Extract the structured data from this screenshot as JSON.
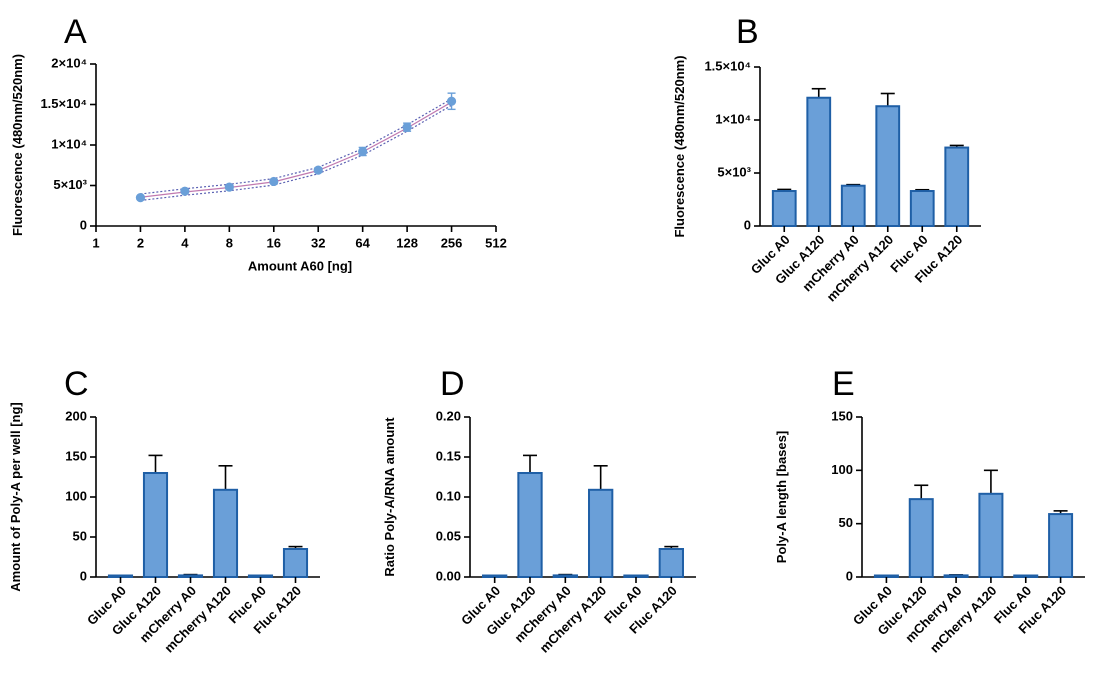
{
  "colors": {
    "bar_fill": "#6a9fd8",
    "bar_stroke": "#1f5fa6",
    "point": "#6a9fd8",
    "fit_line": "#5b62b3",
    "axis": "#000000"
  },
  "chart_data": [
    {
      "panel": "A",
      "type": "scatter",
      "xscale": "log2",
      "xlabel": "Amount  A60 [ng]",
      "ylabel": "Fluorescence (480nm/520nm)",
      "xticks": [
        "1",
        "2",
        "4",
        "8",
        "16",
        "32",
        "64",
        "128",
        "256",
        "512"
      ],
      "xtick_values": [
        1,
        2,
        4,
        8,
        16,
        32,
        64,
        128,
        256,
        512
      ],
      "yticks": [
        "0",
        "5×10³",
        "1×10⁴",
        "1.5×10⁴",
        "2×10⁴"
      ],
      "ytick_values": [
        0,
        5000,
        10000,
        15000,
        20000
      ],
      "xlim": [
        1,
        512
      ],
      "ylim": [
        0,
        20000
      ],
      "series": [
        {
          "x": [
            2,
            4,
            8,
            16,
            32,
            64,
            128,
            256
          ],
          "y": [
            3500,
            4300,
            4800,
            5500,
            6900,
            9200,
            12200,
            15400
          ],
          "err": [
            150,
            200,
            180,
            200,
            250,
            500,
            500,
            1000
          ]
        }
      ],
      "fit": {
        "x": [
          2,
          4,
          8,
          16,
          32,
          64,
          128,
          256
        ],
        "y": [
          3550,
          4200,
          4750,
          5450,
          6850,
          9150,
          12100,
          15300
        ],
        "band": 400
      }
    },
    {
      "panel": "B",
      "type": "bar",
      "categories": [
        "Gluc A0",
        "Gluc A120",
        "mCherry A0",
        "mCherry A120",
        "Fluc A0",
        "Fluc A120"
      ],
      "values": [
        3300,
        12100,
        3800,
        11300,
        3300,
        7400
      ],
      "err": [
        150,
        850,
        100,
        1200,
        120,
        200
      ],
      "ylabel": "Fluorescence (480nm/520nm)",
      "yticks": [
        "0",
        "5×10³",
        "1×10⁴",
        "1.5×10⁴"
      ],
      "ytick_values": [
        0,
        5000,
        10000,
        15000
      ],
      "ylim": [
        0,
        15000
      ]
    },
    {
      "panel": "C",
      "type": "bar",
      "categories": [
        "Gluc A0",
        "Gluc A120",
        "mCherry A0",
        "mCherry A120",
        "Fluc A0",
        "Fluc A120"
      ],
      "values": [
        0.5,
        130,
        2,
        109,
        0.5,
        35
      ],
      "err": [
        0,
        22,
        1,
        30,
        0,
        3
      ],
      "ylabel": "Amount of Poly-A per well [ng]",
      "yticks": [
        "0",
        "50",
        "100",
        "150",
        "200"
      ],
      "ytick_values": [
        0,
        50,
        100,
        150,
        200
      ],
      "ylim": [
        0,
        200
      ]
    },
    {
      "panel": "D",
      "type": "bar",
      "categories": [
        "Gluc A0",
        "Gluc A120",
        "mCherry A0",
        "mCherry A120",
        "Fluc A0",
        "Fluc A120"
      ],
      "values": [
        0.0005,
        0.13,
        0.002,
        0.109,
        0.0005,
        0.035
      ],
      "err": [
        0,
        0.022,
        0.001,
        0.03,
        0,
        0.003
      ],
      "ylabel": "Ratio Poly-A/RNA amount",
      "yticks": [
        "0.00",
        "0.05",
        "0.10",
        "0.15",
        "0.20"
      ],
      "ytick_values": [
        0,
        0.05,
        0.1,
        0.15,
        0.2
      ],
      "ylim": [
        0,
        0.2
      ]
    },
    {
      "panel": "E",
      "type": "bar",
      "categories": [
        "Gluc A0",
        "Gluc A120",
        "mCherry A0",
        "mCherry A120",
        "Fluc A0",
        "Fluc A120"
      ],
      "values": [
        0.5,
        73,
        1.5,
        78,
        1,
        59
      ],
      "err": [
        0,
        13,
        0.5,
        22,
        0,
        3
      ],
      "ylabel": "Poly-A length [bases]",
      "yticks": [
        "0",
        "50",
        "100",
        "150"
      ],
      "ytick_values": [
        0,
        50,
        100,
        150
      ],
      "ylim": [
        0,
        150
      ]
    }
  ]
}
